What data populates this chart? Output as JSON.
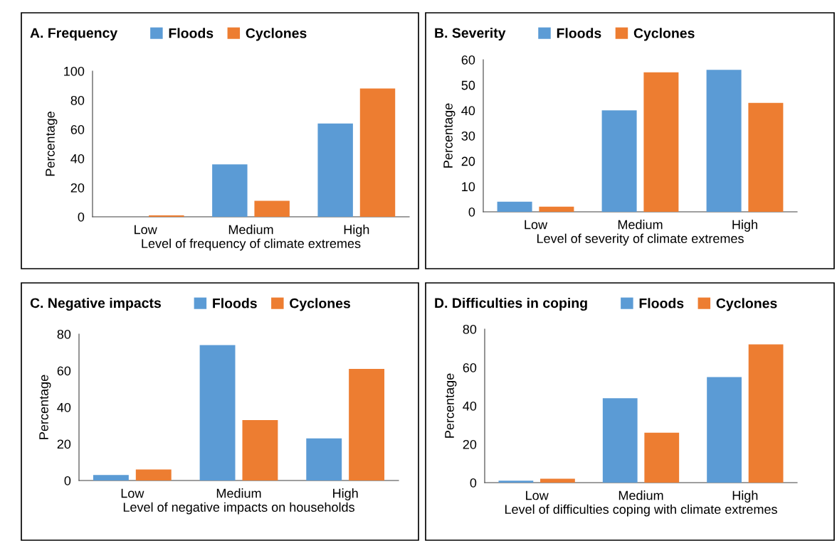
{
  "chart_data": [
    {
      "type": "bar",
      "title": "A. Frequency",
      "xlabel": "Level of frequency of climate extremes",
      "ylabel": "Percentage",
      "categories": [
        "Low",
        "Medium",
        "High"
      ],
      "ylim": [
        0,
        100
      ],
      "yticks": [
        0,
        20,
        40,
        60,
        80,
        100
      ],
      "legend": "top",
      "grid": false,
      "series": [
        {
          "name": "Floods",
          "color": "#5b9bd5",
          "values": [
            0,
            36,
            64
          ]
        },
        {
          "name": "Cyclones",
          "color": "#ed7d31",
          "values": [
            1,
            11,
            88
          ]
        }
      ]
    },
    {
      "type": "bar",
      "title": "B. Severity",
      "xlabel": "Level of severity of climate extremes",
      "ylabel": "Percentage",
      "categories": [
        "Low",
        "Medium",
        "High"
      ],
      "ylim": [
        0,
        60
      ],
      "yticks": [
        0,
        10,
        20,
        30,
        40,
        50,
        60
      ],
      "legend": "top",
      "grid": false,
      "series": [
        {
          "name": "Floods",
          "color": "#5b9bd5",
          "values": [
            4,
            40,
            56
          ]
        },
        {
          "name": "Cyclones",
          "color": "#ed7d31",
          "values": [
            2,
            55,
            43
          ]
        }
      ]
    },
    {
      "type": "bar",
      "title": "C. Negative impacts",
      "xlabel": "Level of negative impacts on households",
      "ylabel": "Percentage",
      "categories": [
        "Low",
        "Medium",
        "High"
      ],
      "ylim": [
        0,
        80
      ],
      "yticks": [
        0,
        20,
        40,
        60,
        80
      ],
      "legend": "top",
      "grid": false,
      "series": [
        {
          "name": "Floods",
          "color": "#5b9bd5",
          "values": [
            3,
            74,
            23
          ]
        },
        {
          "name": "Cyclones",
          "color": "#ed7d31",
          "values": [
            6,
            33,
            61
          ]
        }
      ]
    },
    {
      "type": "bar",
      "title": "D. Difficulties in coping",
      "xlabel": "Level of difficulties coping with climate extremes",
      "ylabel": "Percentage",
      "categories": [
        "Low",
        "Medium",
        "High"
      ],
      "ylim": [
        0,
        80
      ],
      "yticks": [
        0,
        20,
        40,
        60,
        80
      ],
      "legend": "top",
      "grid": false,
      "series": [
        {
          "name": "Floods",
          "color": "#5b9bd5",
          "values": [
            1,
            44,
            55
          ]
        },
        {
          "name": "Cyclones",
          "color": "#ed7d31",
          "values": [
            2,
            26,
            72
          ]
        }
      ]
    }
  ]
}
